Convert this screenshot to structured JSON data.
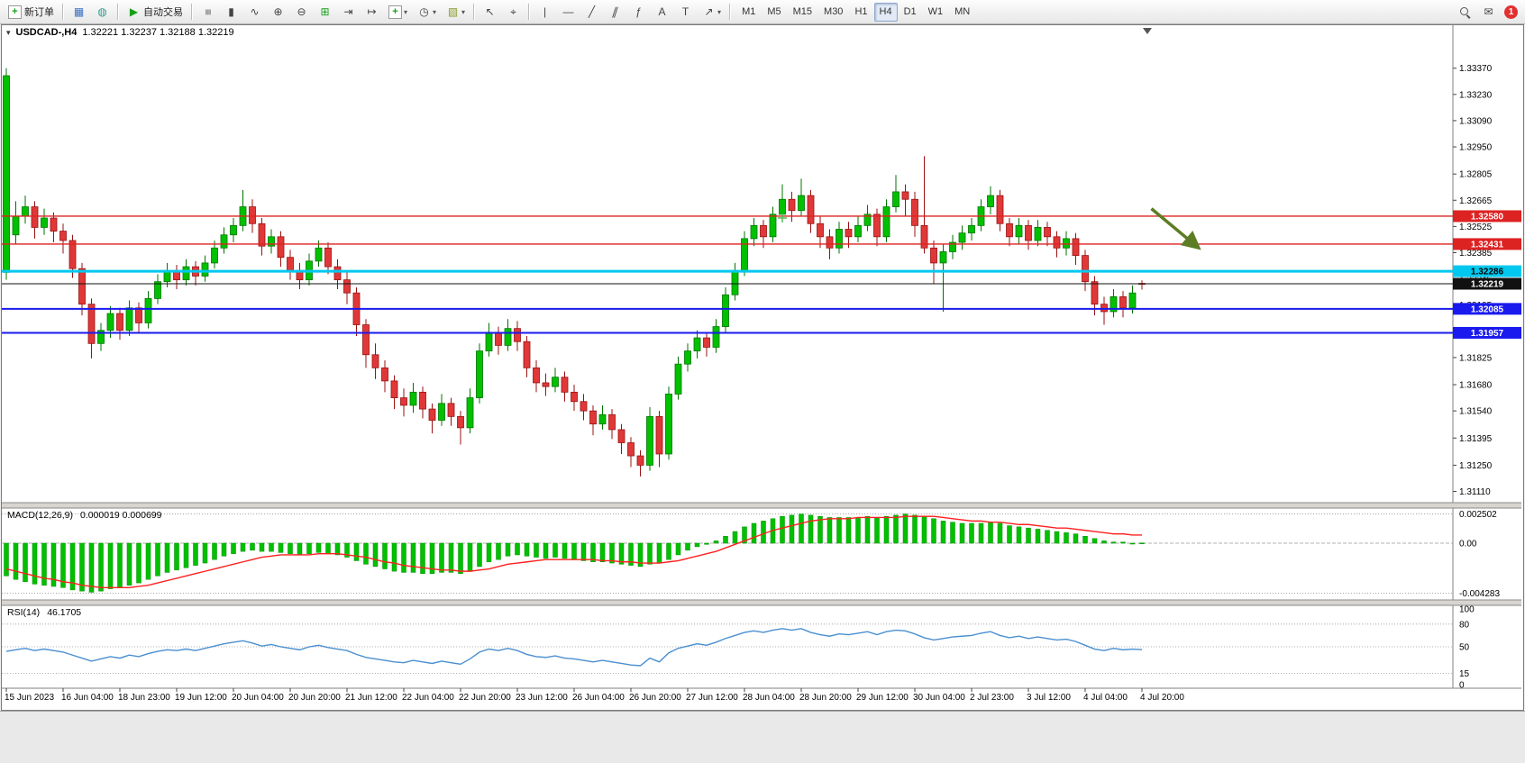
{
  "toolbar": {
    "new_order_label": "新订单",
    "autotrading_label": "自动交易",
    "timeframes": [
      "M1",
      "M5",
      "M15",
      "M30",
      "H1",
      "H4",
      "D1",
      "W1",
      "MN"
    ],
    "active_timeframe": "H4",
    "badge_count": "1"
  },
  "icons": {
    "new_order": "+",
    "market_watch": "▦",
    "navigator": "◍",
    "autotrading": "▶",
    "bar_chart": "≡",
    "candlestick": "▮",
    "line_chart": "∿",
    "zoom_in": "⊕",
    "zoom_out": "⊖",
    "tile_windows": "⊞",
    "auto_scroll": "⇥",
    "chart_shift": "↦",
    "indicators": "+",
    "periods": "◷",
    "templates": "▧",
    "cursor": "↖",
    "crosshair": "⌖",
    "vertical_line": "|",
    "horizontal_line": "—",
    "trendline": "╱",
    "channel": "∥",
    "fibonacci": "ƒ",
    "text": "A",
    "text_label": "T",
    "arrows": "↗",
    "dropdown": "▾",
    "message": "✉",
    "one_click": "▾"
  },
  "chart": {
    "title": "USDCAD-,H4",
    "ohlc_text": "1.32221 1.32237 1.32188 1.32219"
  },
  "chart_data": {
    "type": "candlestick",
    "symbol": "USDCAD-",
    "timeframe": "H4",
    "current_ohlc": {
      "open": "1.32221",
      "high": "1.32237",
      "low": "1.32188",
      "close": "1.32219"
    },
    "price_axis_labels": [
      "1.33370",
      "1.33230",
      "1.33090",
      "1.32950",
      "1.32805",
      "1.32665",
      "1.32525",
      "1.32385",
      "1.32245",
      "1.32105",
      "1.31965",
      "1.31825",
      "1.31680",
      "1.31540",
      "1.31395",
      "1.31250",
      "1.31110"
    ],
    "time_axis": {
      "label_step": 6,
      "labels": [
        "15 Jun 2023",
        "16 Jun 04:00",
        "18 Jun 23:00",
        "19 Jun 12:00",
        "20 Jun 04:00",
        "20 Jun 20:00",
        "21 Jun 12:00",
        "22 Jun 04:00",
        "22 Jun 20:00",
        "23 Jun 12:00",
        "26 Jun 04:00",
        "26 Jun 20:00",
        "27 Jun 12:00",
        "28 Jun 04:00",
        "28 Jun 20:00",
        "29 Jun 12:00",
        "30 Jun 04:00",
        "2 Jul 23:00",
        "3 Jul 12:00",
        "4 Jul 04:00",
        "4 Jul 20:00"
      ]
    },
    "candles": [
      [
        1.3228,
        1.3337,
        1.3224,
        1.3333
      ],
      [
        1.3248,
        1.3266,
        1.3243,
        1.3258
      ],
      [
        1.3258,
        1.3269,
        1.3254,
        1.3263
      ],
      [
        1.3263,
        1.3266,
        1.3246,
        1.3252
      ],
      [
        1.3252,
        1.3262,
        1.3248,
        1.3257
      ],
      [
        1.3257,
        1.326,
        1.3244,
        1.325
      ],
      [
        1.325,
        1.3254,
        1.3238,
        1.3245
      ],
      [
        1.3245,
        1.3248,
        1.3225,
        1.323
      ],
      [
        1.323,
        1.3233,
        1.3205,
        1.3211
      ],
      [
        1.3211,
        1.3214,
        1.3182,
        1.319
      ],
      [
        1.319,
        1.3201,
        1.3186,
        1.3197
      ],
      [
        1.3197,
        1.321,
        1.3193,
        1.3206
      ],
      [
        1.3206,
        1.3209,
        1.3192,
        1.3197
      ],
      [
        1.3197,
        1.3213,
        1.3194,
        1.3209
      ],
      [
        1.3209,
        1.3212,
        1.3196,
        1.3201
      ],
      [
        1.3201,
        1.3218,
        1.3198,
        1.3214
      ],
      [
        1.3214,
        1.3227,
        1.3211,
        1.3223
      ],
      [
        1.3223,
        1.3233,
        1.322,
        1.3229
      ],
      [
        1.3229,
        1.3232,
        1.3219,
        1.3224
      ],
      [
        1.3224,
        1.3235,
        1.3221,
        1.3231
      ],
      [
        1.3231,
        1.3234,
        1.3221,
        1.3226
      ],
      [
        1.3226,
        1.3237,
        1.3223,
        1.3233
      ],
      [
        1.3233,
        1.3245,
        1.323,
        1.3241
      ],
      [
        1.3241,
        1.3252,
        1.3238,
        1.3248
      ],
      [
        1.3248,
        1.3257,
        1.3244,
        1.3253
      ],
      [
        1.3253,
        1.3272,
        1.325,
        1.3263
      ],
      [
        1.3263,
        1.3267,
        1.3249,
        1.3254
      ],
      [
        1.3254,
        1.3257,
        1.3237,
        1.3242
      ],
      [
        1.3242,
        1.3251,
        1.3238,
        1.3247
      ],
      [
        1.3247,
        1.325,
        1.3231,
        1.3236
      ],
      [
        1.3236,
        1.324,
        1.3224,
        1.3229
      ],
      [
        1.3229,
        1.3233,
        1.3219,
        1.3224
      ],
      [
        1.3224,
        1.3238,
        1.3221,
        1.3234
      ],
      [
        1.3234,
        1.3245,
        1.3231,
        1.3241
      ],
      [
        1.3241,
        1.3244,
        1.3227,
        1.3231
      ],
      [
        1.3231,
        1.3235,
        1.3219,
        1.3224
      ],
      [
        1.3224,
        1.3228,
        1.3211,
        1.3217
      ],
      [
        1.3217,
        1.322,
        1.3194,
        1.32
      ],
      [
        1.32,
        1.3203,
        1.3177,
        1.3184
      ],
      [
        1.3184,
        1.319,
        1.3171,
        1.3177
      ],
      [
        1.3177,
        1.3181,
        1.3164,
        1.317
      ],
      [
        1.317,
        1.3173,
        1.3155,
        1.3161
      ],
      [
        1.3161,
        1.3166,
        1.3151,
        1.3157
      ],
      [
        1.3157,
        1.3169,
        1.3153,
        1.3164
      ],
      [
        1.3164,
        1.3167,
        1.315,
        1.3155
      ],
      [
        1.3155,
        1.3158,
        1.3142,
        1.3149
      ],
      [
        1.3149,
        1.3163,
        1.3146,
        1.3158
      ],
      [
        1.3158,
        1.3161,
        1.3146,
        1.3151
      ],
      [
        1.3151,
        1.3154,
        1.3136,
        1.3145
      ],
      [
        1.3145,
        1.3166,
        1.3142,
        1.3161
      ],
      [
        1.3161,
        1.319,
        1.3158,
        1.3186
      ],
      [
        1.3186,
        1.3201,
        1.3183,
        1.3196
      ],
      [
        1.3196,
        1.3199,
        1.3184,
        1.3189
      ],
      [
        1.3189,
        1.3203,
        1.3186,
        1.3198
      ],
      [
        1.3198,
        1.3202,
        1.3186,
        1.3191
      ],
      [
        1.3191,
        1.3194,
        1.3172,
        1.3177
      ],
      [
        1.3177,
        1.3181,
        1.3164,
        1.3169
      ],
      [
        1.3169,
        1.3174,
        1.3162,
        1.3167
      ],
      [
        1.3167,
        1.3177,
        1.3164,
        1.3172
      ],
      [
        1.3172,
        1.3175,
        1.3159,
        1.3164
      ],
      [
        1.3164,
        1.3168,
        1.3154,
        1.3159
      ],
      [
        1.3159,
        1.3163,
        1.3149,
        1.3154
      ],
      [
        1.3154,
        1.3157,
        1.3141,
        1.3147
      ],
      [
        1.3147,
        1.3157,
        1.3144,
        1.3152
      ],
      [
        1.3152,
        1.3155,
        1.3139,
        1.3144
      ],
      [
        1.3144,
        1.3147,
        1.3131,
        1.3137
      ],
      [
        1.3137,
        1.314,
        1.3124,
        1.313
      ],
      [
        1.313,
        1.3133,
        1.3119,
        1.3125
      ],
      [
        1.3125,
        1.3156,
        1.3122,
        1.3151
      ],
      [
        1.3151,
        1.3154,
        1.3124,
        1.3131
      ],
      [
        1.3131,
        1.3167,
        1.3128,
        1.3163
      ],
      [
        1.3163,
        1.3183,
        1.316,
        1.3179
      ],
      [
        1.3179,
        1.319,
        1.3175,
        1.3186
      ],
      [
        1.3186,
        1.3197,
        1.3182,
        1.3193
      ],
      [
        1.3193,
        1.3196,
        1.3183,
        1.3188
      ],
      [
        1.3188,
        1.3203,
        1.3185,
        1.3199
      ],
      [
        1.3199,
        1.322,
        1.3196,
        1.3216
      ],
      [
        1.3216,
        1.3233,
        1.3213,
        1.3229
      ],
      [
        1.3229,
        1.325,
        1.3226,
        1.3246
      ],
      [
        1.3246,
        1.3257,
        1.3242,
        1.3253
      ],
      [
        1.3253,
        1.3256,
        1.3241,
        1.3247
      ],
      [
        1.3247,
        1.3263,
        1.3244,
        1.3259
      ],
      [
        1.3259,
        1.3275,
        1.3256,
        1.3267
      ],
      [
        1.3267,
        1.3271,
        1.3255,
        1.3261
      ],
      [
        1.3261,
        1.3278,
        1.3258,
        1.3269
      ],
      [
        1.3269,
        1.3272,
        1.3249,
        1.3254
      ],
      [
        1.3254,
        1.3258,
        1.3241,
        1.3247
      ],
      [
        1.3247,
        1.3251,
        1.3235,
        1.3241
      ],
      [
        1.3241,
        1.3255,
        1.3238,
        1.3251
      ],
      [
        1.3251,
        1.3255,
        1.3241,
        1.3247
      ],
      [
        1.3247,
        1.3258,
        1.3244,
        1.3253
      ],
      [
        1.3253,
        1.3264,
        1.325,
        1.3259
      ],
      [
        1.3259,
        1.3262,
        1.3242,
        1.3247
      ],
      [
        1.3247,
        1.3267,
        1.3244,
        1.3263
      ],
      [
        1.3263,
        1.328,
        1.326,
        1.3271
      ],
      [
        1.3271,
        1.3275,
        1.3258,
        1.3267
      ],
      [
        1.3267,
        1.3271,
        1.3247,
        1.3253
      ],
      [
        1.3253,
        1.329,
        1.3238,
        1.3241
      ],
      [
        1.3241,
        1.3245,
        1.3222,
        1.3233
      ],
      [
        1.3233,
        1.3243,
        1.3207,
        1.3239
      ],
      [
        1.3239,
        1.3248,
        1.3235,
        1.3244
      ],
      [
        1.3244,
        1.3253,
        1.324,
        1.3249
      ],
      [
        1.3249,
        1.3257,
        1.3245,
        1.3253
      ],
      [
        1.3253,
        1.3267,
        1.325,
        1.3263
      ],
      [
        1.3263,
        1.3274,
        1.3259,
        1.3269
      ],
      [
        1.3269,
        1.3272,
        1.325,
        1.3254
      ],
      [
        1.3254,
        1.3257,
        1.3242,
        1.3247
      ],
      [
        1.3247,
        1.3257,
        1.3243,
        1.3253
      ],
      [
        1.3253,
        1.3256,
        1.324,
        1.3245
      ],
      [
        1.3245,
        1.3256,
        1.3242,
        1.3252
      ],
      [
        1.3252,
        1.3255,
        1.3242,
        1.3247
      ],
      [
        1.3247,
        1.325,
        1.3236,
        1.3241
      ],
      [
        1.3241,
        1.325,
        1.3237,
        1.3246
      ],
      [
        1.3246,
        1.3249,
        1.3232,
        1.3237
      ],
      [
        1.3237,
        1.324,
        1.3218,
        1.3223
      ],
      [
        1.3223,
        1.3226,
        1.3205,
        1.3211
      ],
      [
        1.3211,
        1.3215,
        1.32,
        1.3207
      ],
      [
        1.3207,
        1.3219,
        1.3204,
        1.3215
      ],
      [
        1.3215,
        1.3218,
        1.3204,
        1.3209
      ],
      [
        1.3209,
        1.3221,
        1.3206,
        1.3217
      ],
      [
        1.32221,
        1.32237,
        1.32188,
        1.32219
      ]
    ],
    "levels": [
      {
        "label": "1.32580",
        "price": 1.3258,
        "color": "#dd2222",
        "text_color": "#ffffff",
        "width": 1.4
      },
      {
        "label": "1.32431",
        "price": 1.32431,
        "color": "#dd2222",
        "text_color": "#ffffff",
        "width": 1.4
      },
      {
        "label": "1.32286",
        "price": 1.32286,
        "color": "#00c8ee",
        "text_color": "#000000",
        "width": 3
      },
      {
        "label": "1.32219",
        "price": 1.32219,
        "color": "#111111",
        "text_color": "#ffffff",
        "width": 1
      },
      {
        "label": "1.32085",
        "price": 1.32085,
        "color": "#1a1aee",
        "text_color": "#ffffff",
        "width": 2
      },
      {
        "label": "1.31957",
        "price": 1.31957,
        "color": "#1a1aee",
        "text_color": "#ffffff",
        "width": 2
      }
    ],
    "arrow_annotation": {
      "start": {
        "index": 121,
        "price": 1.3262
      },
      "end": {
        "index": 126,
        "price": 1.3241
      },
      "color": "#5c7d24"
    },
    "plus_marker": {
      "index": 82,
      "price": 1.3257,
      "color": "#55bb55"
    },
    "macd": {
      "label": "MACD(12,26,9)",
      "values_text": "0.000019 0.000699",
      "histogram_color": "#00c000",
      "signal_color": "#ff2020",
      "axis_labels": [
        {
          "value": 0.002502,
          "text": "0.002502"
        },
        {
          "value": 0,
          "text": "0.00"
        },
        {
          "value": -0.004283,
          "text": "-0.004283"
        }
      ],
      "histogram": [
        -0.0028,
        -0.0031,
        -0.0033,
        -0.0035,
        -0.0036,
        -0.0037,
        -0.0038,
        -0.004,
        -0.0041,
        -0.0042,
        -0.0041,
        -0.0039,
        -0.0038,
        -0.0036,
        -0.0034,
        -0.0031,
        -0.0028,
        -0.0025,
        -0.0023,
        -0.0021,
        -0.0019,
        -0.0017,
        -0.0014,
        -0.0011,
        -0.0009,
        -0.0007,
        -0.0006,
        -0.0007,
        -0.0007,
        -0.0008,
        -0.0009,
        -0.001,
        -0.0009,
        -0.0008,
        -0.0009,
        -0.001,
        -0.0012,
        -0.0015,
        -0.0018,
        -0.002,
        -0.0022,
        -0.0024,
        -0.0025,
        -0.0025,
        -0.0026,
        -0.0026,
        -0.0025,
        -0.0025,
        -0.0026,
        -0.0024,
        -0.002,
        -0.0016,
        -0.0014,
        -0.0011,
        -0.001,
        -0.0011,
        -0.0012,
        -0.0013,
        -0.0012,
        -0.0013,
        -0.0014,
        -0.0015,
        -0.0016,
        -0.0016,
        -0.0017,
        -0.0018,
        -0.0019,
        -0.002,
        -0.0018,
        -0.0017,
        -0.0014,
        -0.001,
        -0.0006,
        -0.0003,
        -0.0001,
        0.0002,
        0.0006,
        0.001,
        0.0014,
        0.0017,
        0.0019,
        0.0021,
        0.0023,
        0.0024,
        0.0025,
        0.0024,
        0.0023,
        0.0022,
        0.0022,
        0.0022,
        0.0022,
        0.0023,
        0.0022,
        0.0023,
        0.0024,
        0.0025,
        0.0024,
        0.0023,
        0.0021,
        0.0019,
        0.0018,
        0.0017,
        0.0017,
        0.0017,
        0.0018,
        0.0017,
        0.0015,
        0.0014,
        0.0013,
        0.0012,
        0.0011,
        0.001,
        0.0009,
        0.0008,
        0.0006,
        0.0004,
        0.0002,
        0.0001,
        0.0001,
        0.0,
        1.9e-05
      ],
      "signal": [
        -0.0022,
        -0.0024,
        -0.0026,
        -0.0028,
        -0.003,
        -0.0031,
        -0.0033,
        -0.0034,
        -0.0036,
        -0.0037,
        -0.0038,
        -0.0038,
        -0.0038,
        -0.0038,
        -0.0037,
        -0.0036,
        -0.0034,
        -0.0032,
        -0.003,
        -0.0028,
        -0.0026,
        -0.0024,
        -0.0022,
        -0.002,
        -0.0018,
        -0.0016,
        -0.0014,
        -0.0012,
        -0.0011,
        -0.001,
        -0.001,
        -0.001,
        -0.001,
        -0.0009,
        -0.0009,
        -0.0009,
        -0.001,
        -0.0011,
        -0.0012,
        -0.0014,
        -0.0016,
        -0.0017,
        -0.0019,
        -0.002,
        -0.0021,
        -0.0022,
        -0.0023,
        -0.0023,
        -0.0024,
        -0.0024,
        -0.0023,
        -0.0022,
        -0.002,
        -0.0018,
        -0.0017,
        -0.0016,
        -0.0015,
        -0.0014,
        -0.0014,
        -0.0014,
        -0.0014,
        -0.0014,
        -0.0014,
        -0.0015,
        -0.0015,
        -0.0016,
        -0.0016,
        -0.0017,
        -0.0017,
        -0.0017,
        -0.0016,
        -0.0015,
        -0.0013,
        -0.0011,
        -0.0009,
        -0.0007,
        -0.0004,
        -0.0001,
        0.0002,
        0.0005,
        0.0008,
        0.0011,
        0.0013,
        0.0015,
        0.0017,
        0.0019,
        0.002,
        0.0021,
        0.0021,
        0.0021,
        0.0022,
        0.0022,
        0.0022,
        0.0022,
        0.0022,
        0.0023,
        0.0023,
        0.0023,
        0.0023,
        0.0022,
        0.0021,
        0.002,
        0.0019,
        0.0019,
        0.0018,
        0.0018,
        0.0017,
        0.0016,
        0.0016,
        0.0015,
        0.0014,
        0.0013,
        0.0013,
        0.0012,
        0.0011,
        0.001,
        0.0009,
        0.0008,
        0.0008,
        0.0007,
        0.000699
      ]
    },
    "rsi": {
      "label": "RSI(14)",
      "value_text": "46.1705",
      "line_color": "#4a8fd0",
      "levels": [
        80,
        50,
        15
      ],
      "axis_labels": [
        {
          "value": 100,
          "text": "100"
        },
        {
          "value": 80,
          "text": "80"
        },
        {
          "value": 50,
          "text": "50"
        },
        {
          "value": 15,
          "text": "15"
        },
        {
          "value": 0,
          "text": "0"
        }
      ],
      "values": [
        44,
        46,
        48,
        45,
        47,
        45,
        43,
        39,
        35,
        31,
        34,
        37,
        35,
        39,
        37,
        41,
        44,
        46,
        45,
        47,
        45,
        48,
        51,
        54,
        56,
        58,
        55,
        51,
        53,
        50,
        48,
        46,
        50,
        52,
        49,
        47,
        45,
        40,
        36,
        34,
        32,
        30,
        29,
        32,
        30,
        28,
        31,
        29,
        27,
        34,
        43,
        47,
        45,
        48,
        45,
        40,
        37,
        36,
        38,
        35,
        34,
        32,
        30,
        32,
        30,
        28,
        26,
        25,
        35,
        30,
        42,
        48,
        51,
        54,
        52,
        56,
        61,
        65,
        69,
        71,
        69,
        72,
        74,
        72,
        74,
        69,
        66,
        64,
        67,
        66,
        68,
        70,
        66,
        70,
        72,
        71,
        67,
        62,
        59,
        61,
        63,
        64,
        65,
        68,
        70,
        65,
        62,
        64,
        61,
        63,
        61,
        59,
        60,
        57,
        52,
        47,
        45,
        48,
        46,
        47,
        46.17
      ]
    },
    "colors": {
      "up": "#00c000",
      "up_border": "#007500",
      "down": "#e03838",
      "down_border": "#991111",
      "background": "#ffffff",
      "axis_text": "#000000"
    }
  }
}
